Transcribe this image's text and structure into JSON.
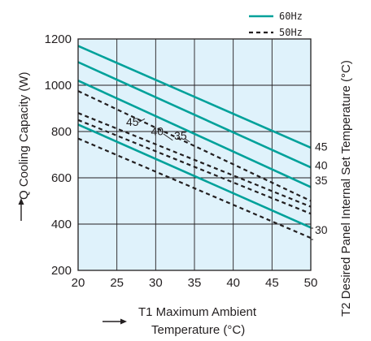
{
  "chart_data": {
    "type": "line",
    "xlabel_line1": "T1 Maximum Ambient",
    "xlabel_line2": "Temperature (°C)",
    "ylabel": "Q Cooling Capacity (W)",
    "y2label": "T2 Desired Panel Internal Set Temperature (°C)",
    "xlim": [
      20,
      50
    ],
    "ylim": [
      200,
      1200
    ],
    "x_ticks": [
      "20",
      "25",
      "30",
      "35",
      "40",
      "45",
      "50"
    ],
    "y_ticks": [
      "200",
      "400",
      "600",
      "800",
      "1000",
      "1200"
    ],
    "grid": true,
    "legend": [
      {
        "label": "60Hz",
        "style": "solid",
        "color": "#00a19a"
      },
      {
        "label": "50Hz",
        "style": "dashed",
        "color": "#231f20"
      }
    ],
    "background_color": "#dff2fb",
    "series": [
      {
        "group": "60Hz",
        "t2": "45",
        "x": [
          20,
          50
        ],
        "y": [
          1170,
          730
        ]
      },
      {
        "group": "60Hz",
        "t2": "40",
        "x": [
          20,
          50
        ],
        "y": [
          1100,
          645
        ]
      },
      {
        "group": "60Hz",
        "t2": "35",
        "x": [
          20,
          50
        ],
        "y": [
          1020,
          560
        ]
      },
      {
        "group": "60Hz",
        "t2": "30",
        "x": [
          20,
          50
        ],
        "y": [
          830,
          385
        ]
      },
      {
        "group": "50Hz",
        "t2": "45",
        "x": [
          20,
          50
        ],
        "y": [
          975,
          500
        ]
      },
      {
        "group": "50Hz",
        "t2": "40",
        "x": [
          20,
          50
        ],
        "y": [
          880,
          475
        ]
      },
      {
        "group": "50Hz",
        "t2": "35",
        "x": [
          20,
          50
        ],
        "y": [
          850,
          445
        ]
      },
      {
        "group": "50Hz",
        "t2": "30",
        "x": [
          20,
          50
        ],
        "y": [
          770,
          340
        ]
      }
    ],
    "right_labels": [
      {
        "text": "45",
        "y": 735
      },
      {
        "text": "40",
        "y": 655
      },
      {
        "text": "35",
        "y": 590
      },
      {
        "text": "30",
        "y": 375
      }
    ],
    "inline_labels": [
      {
        "text": "45",
        "x": 27.0,
        "y": 825
      },
      {
        "text": "40",
        "x": 30.2,
        "y": 785
      },
      {
        "text": "35",
        "x": 33.2,
        "y": 765
      }
    ]
  }
}
